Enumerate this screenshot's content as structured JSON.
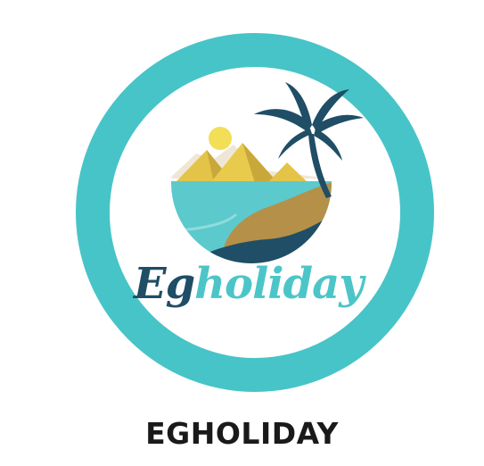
{
  "logo": {
    "wordmark_part1": "Eg",
    "wordmark_part2": "holiday",
    "icon": "pyramids-beach-palm-icon",
    "colors": {
      "ring": "#47c4c8",
      "eg_text": "#1f4e66",
      "holiday_text": "#4cc5c8",
      "sun": "#f2de57",
      "pyramid": "#e3c449",
      "sand": "#b59048",
      "water": "#5cc9cc",
      "palm": "#1f4e66"
    }
  },
  "caption": "EGHOLIDAY"
}
